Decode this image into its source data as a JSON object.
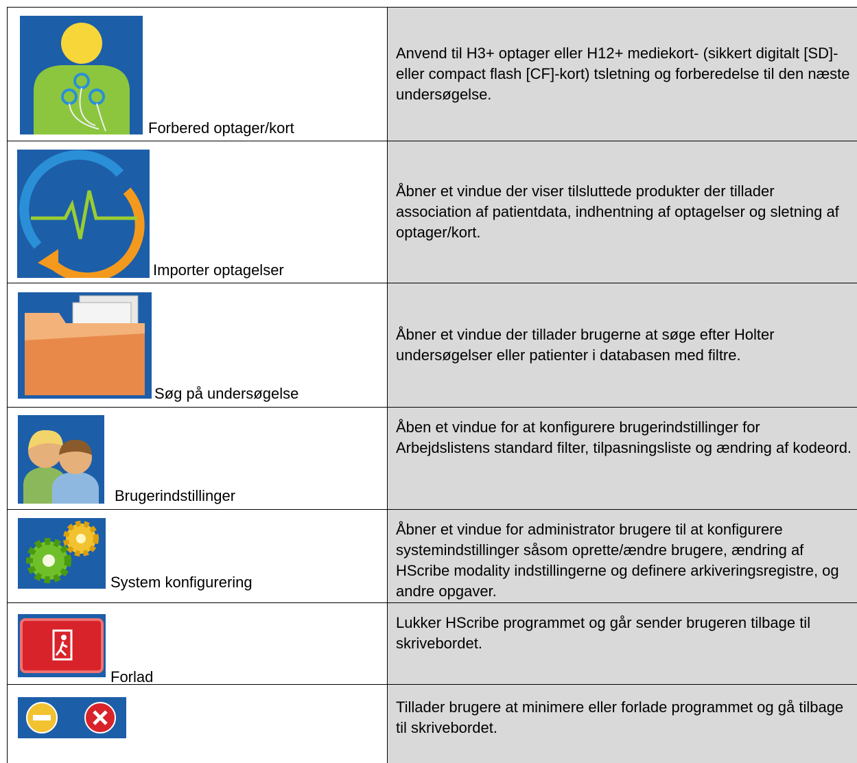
{
  "table": {
    "rows": [
      {
        "label": "Forbered optager/kort",
        "description": "Anvend til H3+ optager eller H12+ mediekort- (sikkert digitalt [SD]- eller compact flash [CF]-kort) tsletning og forberedelse til den næste undersøgelse."
      },
      {
        "label": "Importer optagelser",
        "description": "Åbner et vindue der viser tilsluttede produkter der tillader association af patientdata, indhentning af optagelser og sletning af optager/kort."
      },
      {
        "label": "Søg på undersøgelse",
        "description": "Åbner et vindue der tillader brugerne at søge efter Holter undersøgelser eller patienter i databasen med filtre."
      },
      {
        "label": "Brugerindstillinger",
        "description": "Åben et vindue for at konfigurere brugerindstillinger for Arbejdslistens standard filter, tilpasningsliste og ændring af kodeord."
      },
      {
        "label": "System konfigurering",
        "description": "Åbner et vindue for administrator brugere til at konfigurere systemindstillinger såsom oprette/ændre brugere, ændring af HScribe modality indstillingerne og definere arkiveringsregistre, og andre opgaver."
      },
      {
        "label": "Forlad",
        "description": "Lukker HScribe programmet og går sender brugeren tilbage til skrivebordet."
      },
      {
        "description": "Tillader brugere at minimere eller forlade programmet og gå tilbage til skrivebordet."
      }
    ]
  }
}
